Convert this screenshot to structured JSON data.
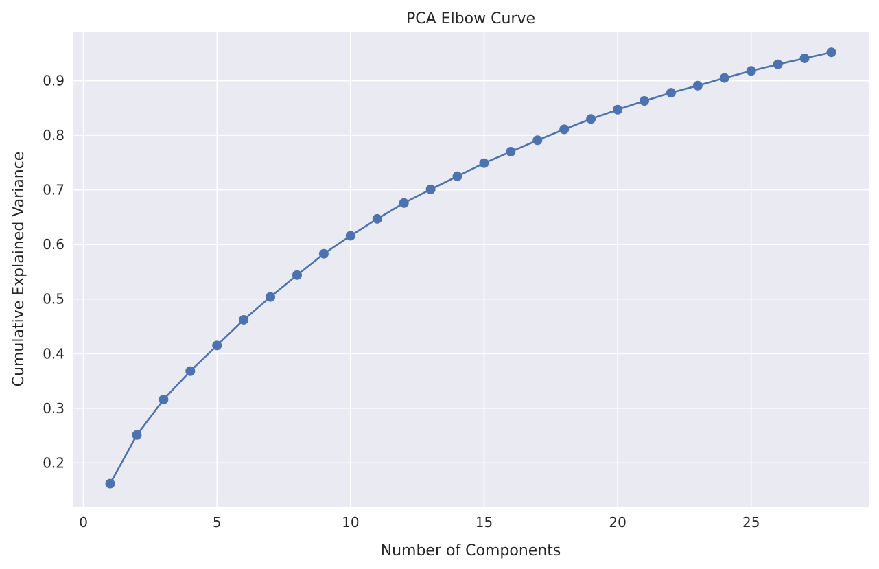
{
  "chart_data": {
    "type": "line",
    "title": "PCA Elbow Curve",
    "xlabel": "Number of Components",
    "ylabel": "Cumulative Explained Variance",
    "xlim": [
      -0.4,
      29.4
    ],
    "ylim": [
      0.12,
      0.99
    ],
    "xticks": [
      0,
      5,
      10,
      15,
      20,
      25
    ],
    "yticks": [
      0.2,
      0.3,
      0.4,
      0.5,
      0.6,
      0.7,
      0.8,
      0.9
    ],
    "xtick_labels": [
      "0",
      "5",
      "10",
      "15",
      "20",
      "25"
    ],
    "ytick_labels": [
      "0.2",
      "0.3",
      "0.4",
      "0.5",
      "0.6",
      "0.7",
      "0.8",
      "0.9"
    ],
    "grid": true,
    "legend": "none",
    "colors": {
      "series": "#4c72b0",
      "background": "#eaeaf2",
      "grid": "#ffffff"
    },
    "series": [
      {
        "marker": "circle",
        "x": [
          1,
          2,
          3,
          4,
          5,
          6,
          7,
          8,
          9,
          10,
          11,
          12,
          13,
          14,
          15,
          16,
          17,
          18,
          19,
          20,
          21,
          22,
          23,
          24,
          25,
          26,
          27,
          28
        ],
        "y": [
          0.162,
          0.251,
          0.316,
          0.368,
          0.415,
          0.462,
          0.504,
          0.544,
          0.583,
          0.616,
          0.647,
          0.676,
          0.701,
          0.725,
          0.749,
          0.77,
          0.791,
          0.811,
          0.83,
          0.847,
          0.863,
          0.878,
          0.891,
          0.905,
          0.918,
          0.93,
          0.941,
          0.952
        ]
      }
    ]
  }
}
